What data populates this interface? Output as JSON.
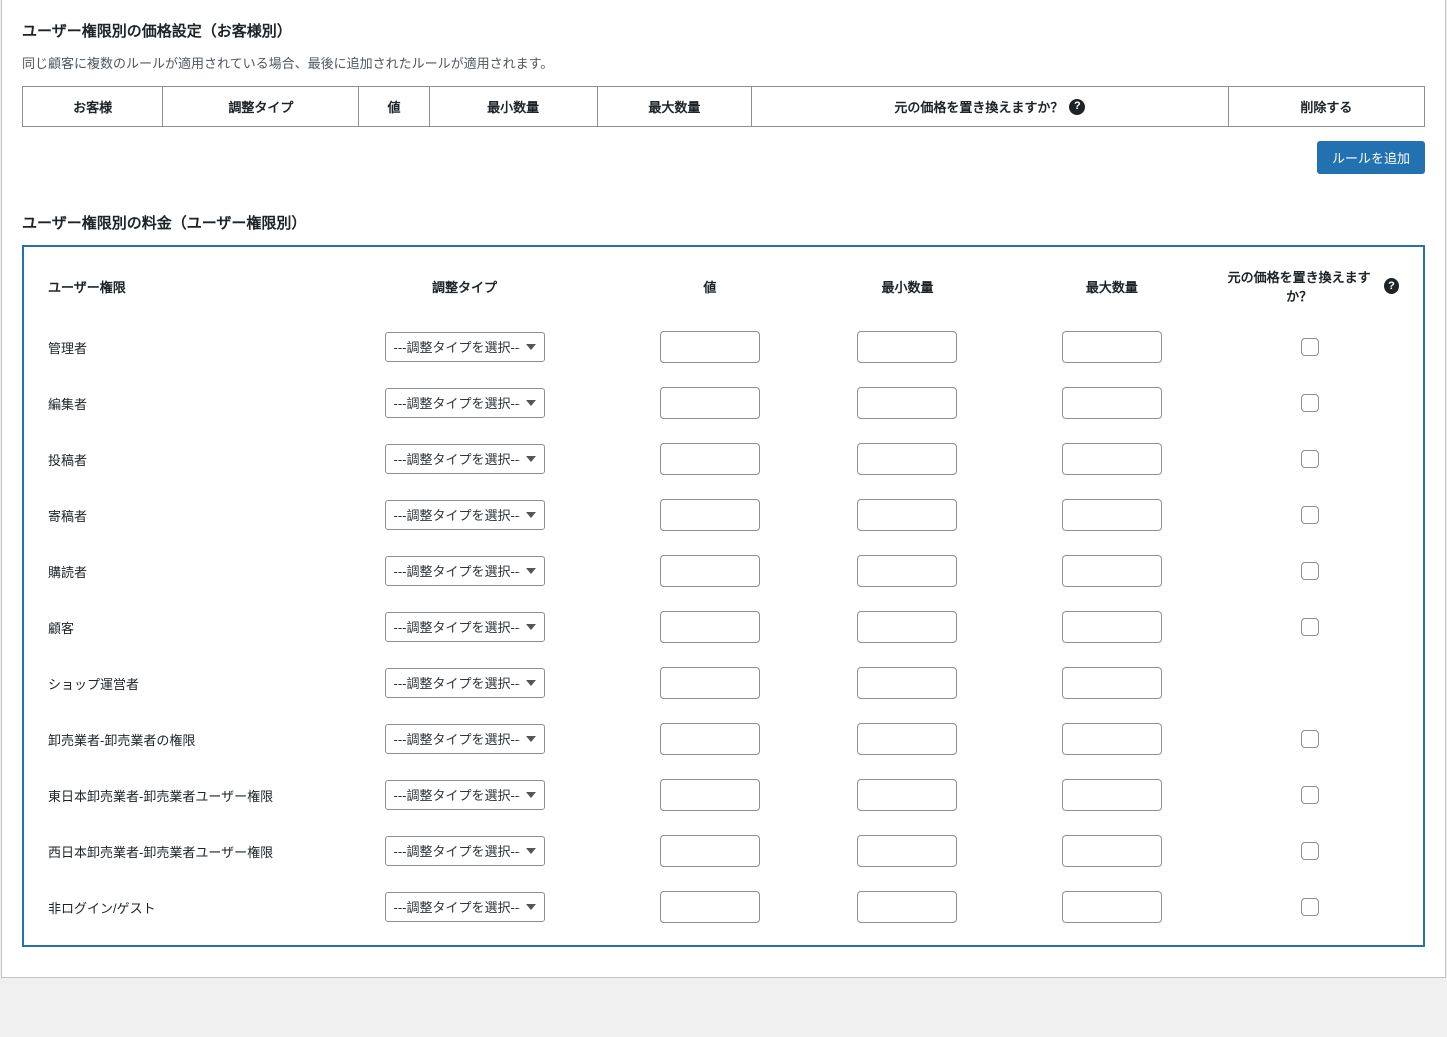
{
  "section1": {
    "title": "ユーザー権限別の価格設定（お客様別）",
    "description": "同じ顧客に複数のルールが適用されている場合、最後に追加されたルールが適用されます。",
    "columns": {
      "customer": "お客様",
      "adjustment_type": "調整タイプ",
      "value": "値",
      "min_qty": "最小数量",
      "max_qty": "最大数量",
      "replace_original": "元の価格を置き換えますか？",
      "delete": "削除する"
    },
    "add_rule_button": "ルールを追加"
  },
  "section2": {
    "title": "ユーザー権限別の料金（ユーザー権限別）",
    "columns": {
      "role": "ユーザー権限",
      "adjustment_type": "調整タイプ",
      "value": "値",
      "min_qty": "最小数量",
      "max_qty": "最大数量",
      "replace_original": "元の価格を置き換えますか？"
    },
    "select_placeholder": "---調整タイプを選択---",
    "roles": [
      {
        "label": "管理者",
        "show_checkbox": true
      },
      {
        "label": "編集者",
        "show_checkbox": true
      },
      {
        "label": "投稿者",
        "show_checkbox": true
      },
      {
        "label": "寄稿者",
        "show_checkbox": true
      },
      {
        "label": "購読者",
        "show_checkbox": true
      },
      {
        "label": "顧客",
        "show_checkbox": true
      },
      {
        "label": "ショップ運営者",
        "show_checkbox": false
      },
      {
        "label": "卸売業者-卸売業者の権限",
        "show_checkbox": true
      },
      {
        "label": "東日本卸売業者-卸売業者ユーザー権限",
        "show_checkbox": true
      },
      {
        "label": "西日本卸売業者-卸売業者ユーザー権限",
        "show_checkbox": true
      },
      {
        "label": "非ログイン/ゲスト",
        "show_checkbox": true
      }
    ]
  },
  "help_glyph": "?",
  "colors": {
    "primary": "#2271b1",
    "border": "#8c8f94",
    "panel_bg": "#ffffff",
    "page_bg": "#f0f0f1",
    "text": "#1d2327"
  }
}
